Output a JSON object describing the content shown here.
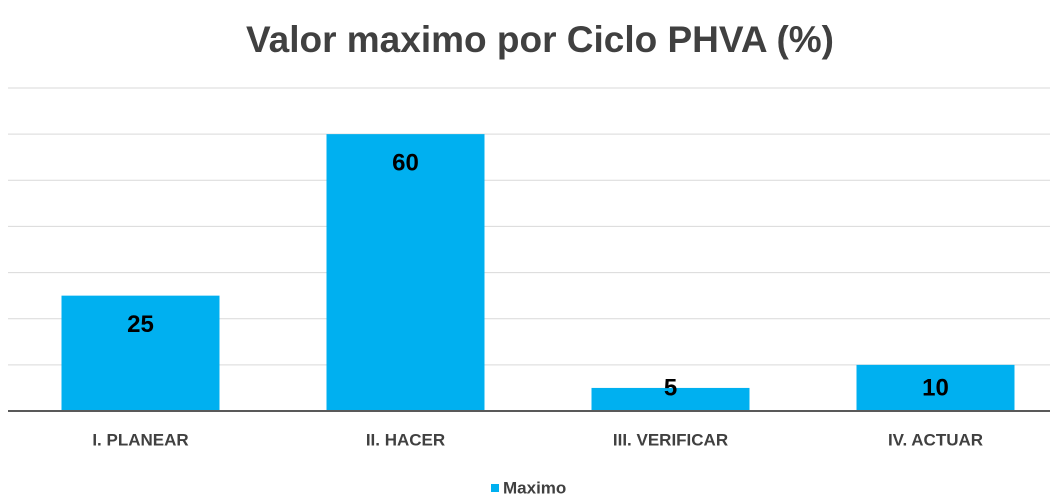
{
  "chart_data": {
    "type": "bar",
    "title": "Valor maximo por Ciclo PHVA (%)",
    "categories": [
      "I. PLANEAR",
      "II. HACER",
      "III. VERIFICAR",
      "IV. ACTUAR"
    ],
    "series": [
      {
        "name": "Maximo",
        "color": "#00b0f0",
        "values": [
          25,
          60,
          5,
          10
        ]
      }
    ],
    "ylim": [
      0,
      70
    ],
    "yticks": [
      0,
      10,
      20,
      30,
      40,
      50,
      60,
      70
    ],
    "grid": true,
    "legend": "bottom"
  }
}
